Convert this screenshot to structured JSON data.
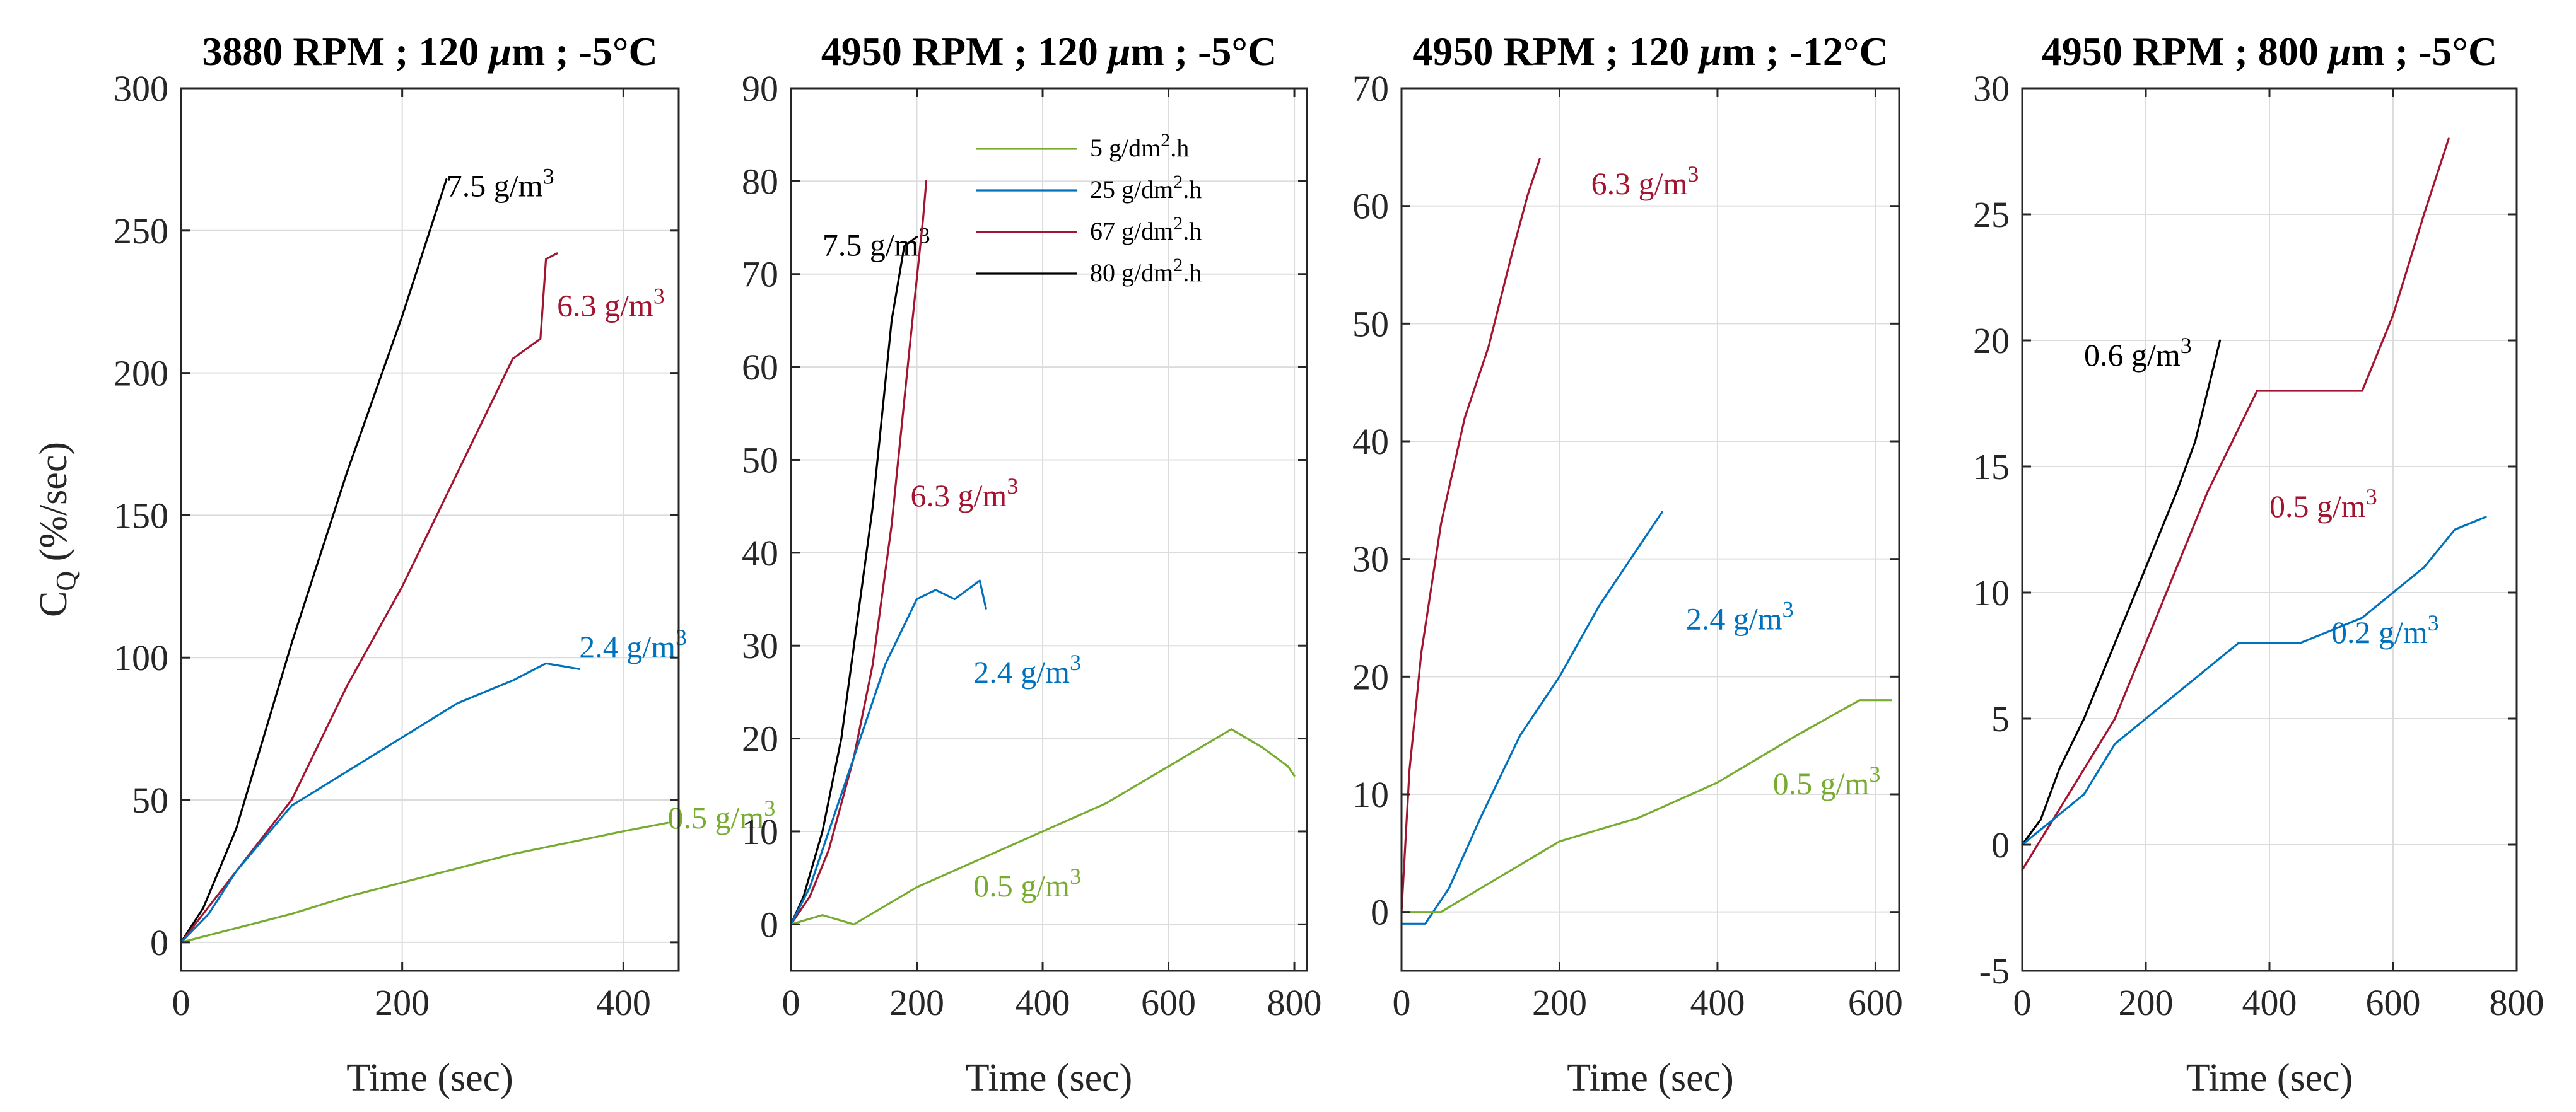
{
  "colors": {
    "5 g/dm2.h": "#77AC30",
    "25 g/dm2.h": "#0072BD",
    "67 g/dm2.h": "#A2142F",
    "80 g/dm2.h": "#000000"
  },
  "ylabel_main": "C",
  "ylabel_sub": "Q",
  "ylabel_unit": " (%/sec)",
  "legend": [
    {
      "value": "5 g/dm",
      "sup": "2",
      "suffix": ".h",
      "color_key": "5 g/dm2.h"
    },
    {
      "value": "25 g/dm",
      "sup": "2",
      "suffix": ".h",
      "color_key": "25 g/dm2.h"
    },
    {
      "value": "67 g/dm",
      "sup": "2",
      "suffix": ".h",
      "color_key": "67 g/dm2.h"
    },
    {
      "value": "80 g/dm",
      "sup": "2",
      "suffix": ".h",
      "color_key": "80 g/dm2.h"
    }
  ],
  "chart_data": [
    {
      "type": "line",
      "title_pre": "3880 RPM ; 120 ",
      "title_mu": "μ",
      "title_post": "m ; -5°C",
      "xlabel": "Time (sec)",
      "xlim": [
        0,
        450
      ],
      "ylim": [
        -10,
        300
      ],
      "xticks": [
        0,
        200,
        400
      ],
      "yticks": [
        0,
        50,
        100,
        150,
        200,
        250,
        300
      ],
      "grid": true,
      "series": [
        {
          "name": "7.5 g/m",
          "sup": "3",
          "color_key": "80 g/dm2.h",
          "x": [
            0,
            20,
            50,
            100,
            150,
            200,
            240
          ],
          "y": [
            0,
            12,
            40,
            105,
            165,
            220,
            268
          ]
        },
        {
          "name": "6.3 g/m",
          "sup": "3",
          "color_key": "67 g/dm2.h",
          "x": [
            0,
            20,
            50,
            100,
            150,
            200,
            250,
            300,
            325,
            330,
            340
          ],
          "y": [
            0,
            10,
            25,
            50,
            90,
            125,
            165,
            205,
            212,
            240,
            242
          ]
        },
        {
          "name": "2.4 g/m",
          "sup": "3",
          "color_key": "25 g/dm2.h",
          "x": [
            0,
            25,
            50,
            100,
            150,
            200,
            250,
            300,
            330,
            360
          ],
          "y": [
            0,
            10,
            25,
            48,
            60,
            72,
            84,
            92,
            98,
            96
          ]
        },
        {
          "name": "0.5 g/m",
          "sup": "3",
          "color_key": "5 g/dm2.h",
          "x": [
            0,
            50,
            100,
            150,
            200,
            250,
            300,
            350,
            400,
            440
          ],
          "y": [
            0,
            5,
            10,
            16,
            21,
            26,
            31,
            35,
            39,
            42
          ]
        }
      ]
    },
    {
      "type": "line",
      "title_pre": "4950 RPM ; 120 ",
      "title_mu": "μ",
      "title_post": "m ; -5°C",
      "xlabel": "Time (sec)",
      "xlim": [
        0,
        820
      ],
      "ylim": [
        -5,
        90
      ],
      "xticks": [
        0,
        200,
        400,
        600,
        800
      ],
      "yticks": [
        0,
        10,
        20,
        30,
        40,
        50,
        60,
        70,
        80,
        90
      ],
      "grid": true,
      "series": [
        {
          "name": "7.5 g/m",
          "sup": "3",
          "color_key": "80 g/dm2.h",
          "x": [
            0,
            20,
            50,
            80,
            100,
            130,
            160,
            180,
            200
          ],
          "y": [
            0,
            3,
            10,
            20,
            30,
            45,
            65,
            73,
            74
          ]
        },
        {
          "name": "6.3 g/m",
          "sup": "3",
          "color_key": "67 g/dm2.h",
          "x": [
            0,
            30,
            60,
            100,
            130,
            160,
            190,
            210,
            215
          ],
          "y": [
            0,
            3,
            8,
            18,
            28,
            43,
            63,
            76,
            80
          ]
        },
        {
          "name": "2.4 g/m",
          "sup": "3",
          "color_key": "25 g/dm2.h",
          "x": [
            0,
            30,
            60,
            100,
            150,
            200,
            230,
            260,
            300,
            310
          ],
          "y": [
            0,
            4,
            10,
            18,
            28,
            35,
            36,
            35,
            37,
            34
          ]
        },
        {
          "name": "0.5 g/m",
          "sup": "3",
          "color_key": "5 g/dm2.h",
          "x": [
            0,
            50,
            100,
            200,
            300,
            400,
            500,
            600,
            650,
            700,
            750,
            790,
            800
          ],
          "y": [
            0,
            1,
            0,
            4,
            7,
            10,
            13,
            17,
            19,
            21,
            19,
            17,
            16
          ]
        }
      ]
    },
    {
      "type": "line",
      "title_pre": "4950 RPM ; 120 ",
      "title_mu": "μ",
      "title_post": "m ; -12°C",
      "xlabel": "Time (sec)",
      "xlim": [
        0,
        630
      ],
      "ylim": [
        -5,
        70
      ],
      "xticks": [
        0,
        200,
        400,
        600
      ],
      "yticks": [
        0,
        10,
        20,
        30,
        40,
        50,
        60,
        70
      ],
      "grid": true,
      "series": [
        {
          "name": "6.3 g/m",
          "sup": "3",
          "color_key": "67 g/dm2.h",
          "x": [
            0,
            10,
            25,
            50,
            80,
            110,
            140,
            160,
            175
          ],
          "y": [
            0,
            12,
            22,
            33,
            42,
            48,
            56,
            61,
            64
          ]
        },
        {
          "name": "2.4 g/m",
          "sup": "3",
          "color_key": "25 g/dm2.h",
          "x": [
            0,
            30,
            60,
            100,
            150,
            200,
            250,
            300,
            330
          ],
          "y": [
            -1,
            -1,
            2,
            8,
            15,
            20,
            26,
            31,
            34
          ]
        },
        {
          "name": "0.5 g/m",
          "sup": "3",
          "color_key": "5 g/dm2.h",
          "x": [
            0,
            50,
            100,
            150,
            200,
            300,
            400,
            500,
            580,
            620
          ],
          "y": [
            0,
            0,
            2,
            4,
            6,
            8,
            11,
            15,
            18,
            18
          ]
        }
      ]
    },
    {
      "type": "line",
      "title_pre": "4950 RPM ; 800 ",
      "title_mu": "μ",
      "title_post": "m ; -5°C",
      "xlabel": "Time (sec)",
      "xlim": [
        0,
        800
      ],
      "ylim": [
        -5,
        30
      ],
      "xticks": [
        0,
        200,
        400,
        600,
        800
      ],
      "yticks": [
        -5,
        0,
        5,
        10,
        15,
        20,
        25,
        30
      ],
      "grid": true,
      "series": [
        {
          "name": "0.6 g/m",
          "sup": "3",
          "color_key": "80 g/dm2.h",
          "x": [
            0,
            30,
            60,
            100,
            150,
            200,
            250,
            280,
            300,
            320
          ],
          "y": [
            0,
            1,
            3,
            5,
            8,
            11,
            14,
            16,
            18,
            20
          ]
        },
        {
          "name": "0.5 g/m",
          "sup": "3",
          "color_key": "67 g/dm2.h",
          "x": [
            0,
            50,
            100,
            150,
            200,
            250,
            300,
            340,
            380,
            400,
            450,
            500,
            550,
            600,
            650,
            690
          ],
          "y": [
            -1,
            1,
            3,
            5,
            8,
            11,
            14,
            16,
            18,
            18,
            18,
            18,
            18,
            21,
            25,
            28
          ]
        },
        {
          "name": "0.2 g/m",
          "sup": "3",
          "color_key": "25 g/dm2.h",
          "x": [
            0,
            50,
            100,
            150,
            200,
            250,
            300,
            350,
            400,
            450,
            500,
            550,
            600,
            650,
            700,
            750
          ],
          "y": [
            0,
            1,
            2,
            4,
            5,
            6,
            7,
            8,
            8,
            8,
            8.5,
            9,
            10,
            11,
            12.5,
            13
          ]
        }
      ]
    }
  ]
}
